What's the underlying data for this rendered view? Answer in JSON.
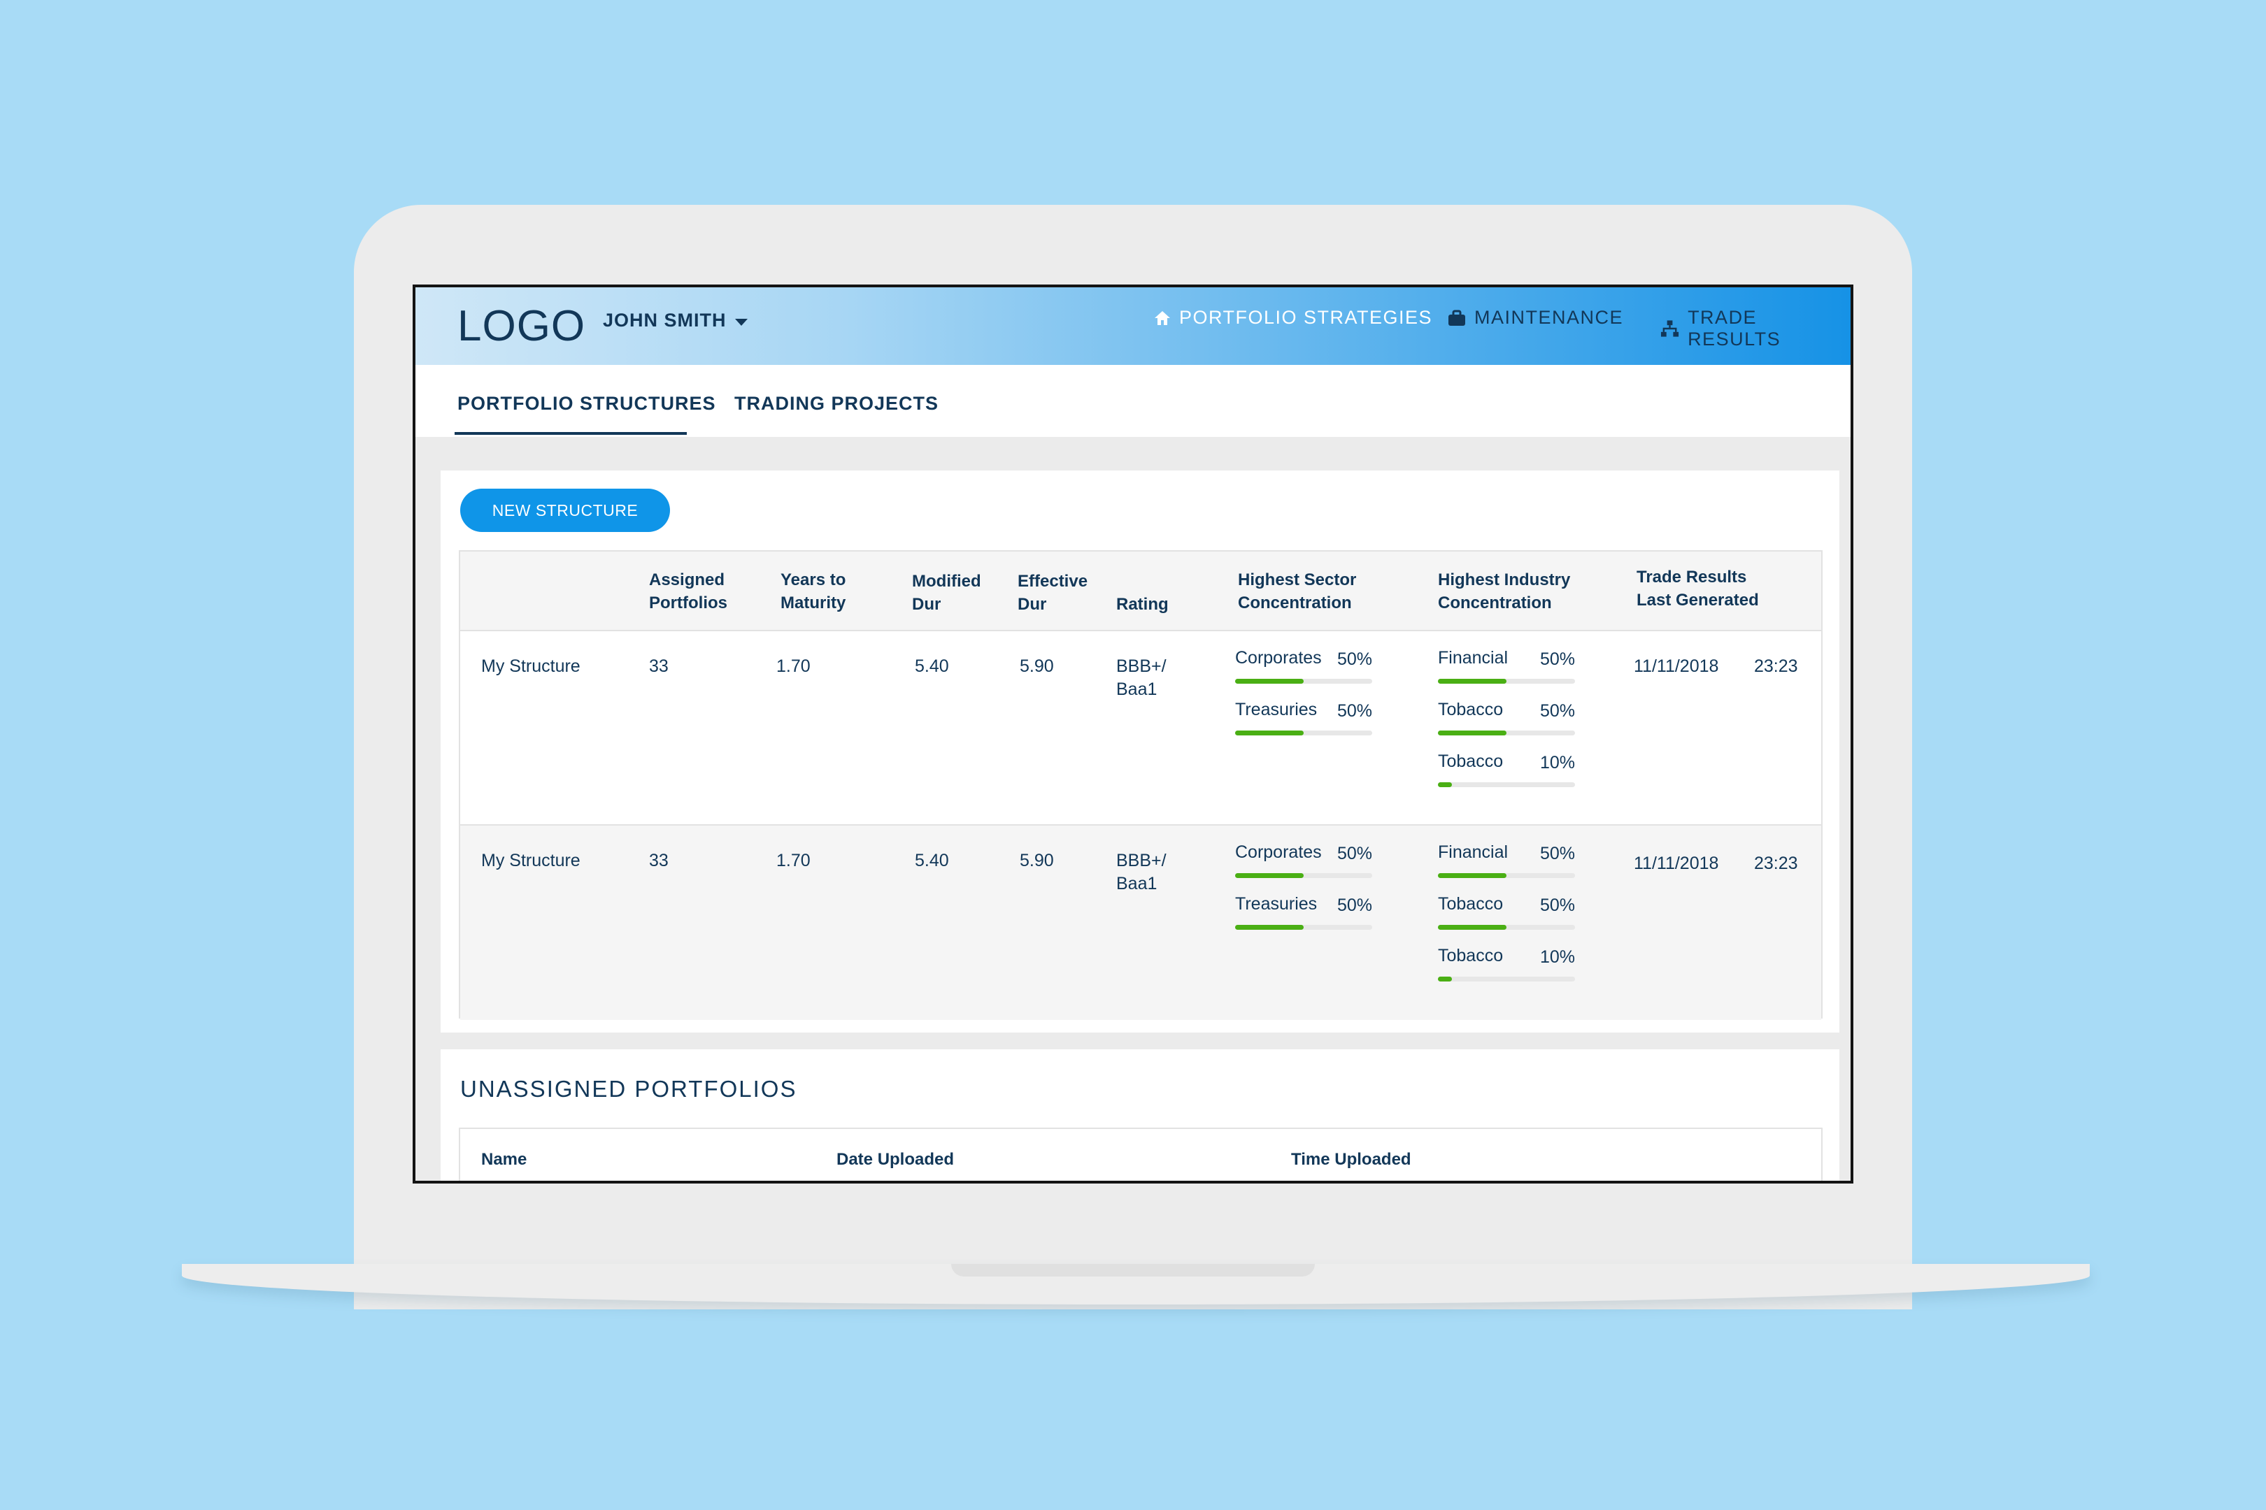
{
  "header": {
    "logo": "LOGO",
    "user_name": "JOHN SMITH",
    "nav": [
      {
        "label": "PORTFOLIO STRATEGIES",
        "icon": "home-icon",
        "color": "#ffffff"
      },
      {
        "label": "MAINTENANCE",
        "icon": "briefcase-icon",
        "color": "#123758"
      },
      {
        "label": "TRADE RESULTS",
        "icon": "sitemap-icon",
        "color": "#123758"
      }
    ]
  },
  "tabs": [
    {
      "label": "PORTFOLIO STRUCTURES",
      "active": true
    },
    {
      "label": "TRADING PROJECTS",
      "active": false
    }
  ],
  "structures": {
    "new_button": "NEW STRUCTURE",
    "columns": {
      "assigned": [
        "Assigned",
        "Portfolios"
      ],
      "years": [
        "Years to",
        "Maturity"
      ],
      "modified": [
        "Modified",
        "Dur"
      ],
      "effective": [
        "Effective",
        "Dur"
      ],
      "rating": "Rating",
      "sector": [
        "Highest Sector",
        "Concentration"
      ],
      "industry": [
        "Highest Industry",
        "Concentration"
      ],
      "trade": [
        "Trade Results",
        "Last Generated"
      ]
    },
    "rows": [
      {
        "name": "My Structure",
        "assigned": "33",
        "years": "1.70",
        "modified": "5.40",
        "effective": "5.90",
        "rating": [
          "BBB+/",
          "Baa1"
        ],
        "sectors": [
          {
            "label": "Corporates",
            "pct": "50%",
            "value": 0.5
          },
          {
            "label": "Treasuries",
            "pct": "50%",
            "value": 0.5
          }
        ],
        "industries": [
          {
            "label": "Financial",
            "pct": "50%",
            "value": 0.5
          },
          {
            "label": "Tobacco",
            "pct": "50%",
            "value": 0.5
          },
          {
            "label": "Tobacco",
            "pct": "10%",
            "value": 0.1
          }
        ],
        "date": "11/11/2018",
        "time": "23:23"
      },
      {
        "name": "My Structure",
        "assigned": "33",
        "years": "1.70",
        "modified": "5.40",
        "effective": "5.90",
        "rating": [
          "BBB+/",
          "Baa1"
        ],
        "sectors": [
          {
            "label": "Corporates",
            "pct": "50%",
            "value": 0.5
          },
          {
            "label": "Treasuries",
            "pct": "50%",
            "value": 0.5
          }
        ],
        "industries": [
          {
            "label": "Financial",
            "pct": "50%",
            "value": 0.5
          },
          {
            "label": "Tobacco",
            "pct": "50%",
            "value": 0.5
          },
          {
            "label": "Tobacco",
            "pct": "10%",
            "value": 0.1
          }
        ],
        "date": "11/11/2018",
        "time": "23:23"
      }
    ]
  },
  "unassigned": {
    "title": "UNASSIGNED PORTFOLIOS",
    "columns": [
      "Name",
      "Date Uploaded",
      "Time Uploaded"
    ]
  },
  "colors": {
    "navy": "#123758",
    "accent_blue": "#0f95e8",
    "meter_green": "#4aaf14",
    "background": "#a8dbf6"
  }
}
